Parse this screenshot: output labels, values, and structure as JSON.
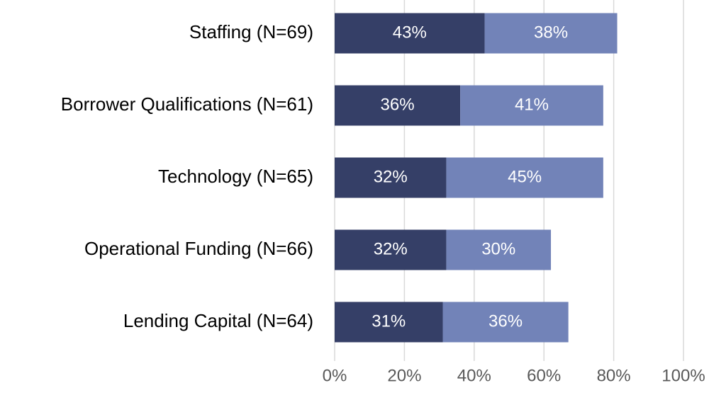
{
  "chart_data": {
    "type": "stacked-barh",
    "categories": [
      "Staffing (N=69)",
      "Borrower Qualifications (N=61)",
      "Technology (N=65)",
      "Operational Funding (N=66)",
      "Lending Capital (N=64)"
    ],
    "series": [
      {
        "color": "#353f67",
        "values": [
          43,
          36,
          32,
          32,
          31
        ],
        "value_labels": [
          "43%",
          "36%",
          "32%",
          "32%",
          "31%"
        ]
      },
      {
        "color": "#7283b8",
        "values": [
          38,
          41,
          45,
          30,
          36
        ],
        "value_labels": [
          "38%",
          "41%",
          "45%",
          "30%",
          "36%"
        ]
      }
    ],
    "xlim": [
      0,
      100
    ],
    "xticks": [
      {
        "value": 0,
        "label": "0%"
      },
      {
        "value": 20,
        "label": "20%"
      },
      {
        "value": 40,
        "label": "40%"
      },
      {
        "value": 60,
        "label": "60%"
      },
      {
        "value": 80,
        "label": "80%"
      },
      {
        "value": 100,
        "label": "100%"
      }
    ],
    "grid": true
  }
}
